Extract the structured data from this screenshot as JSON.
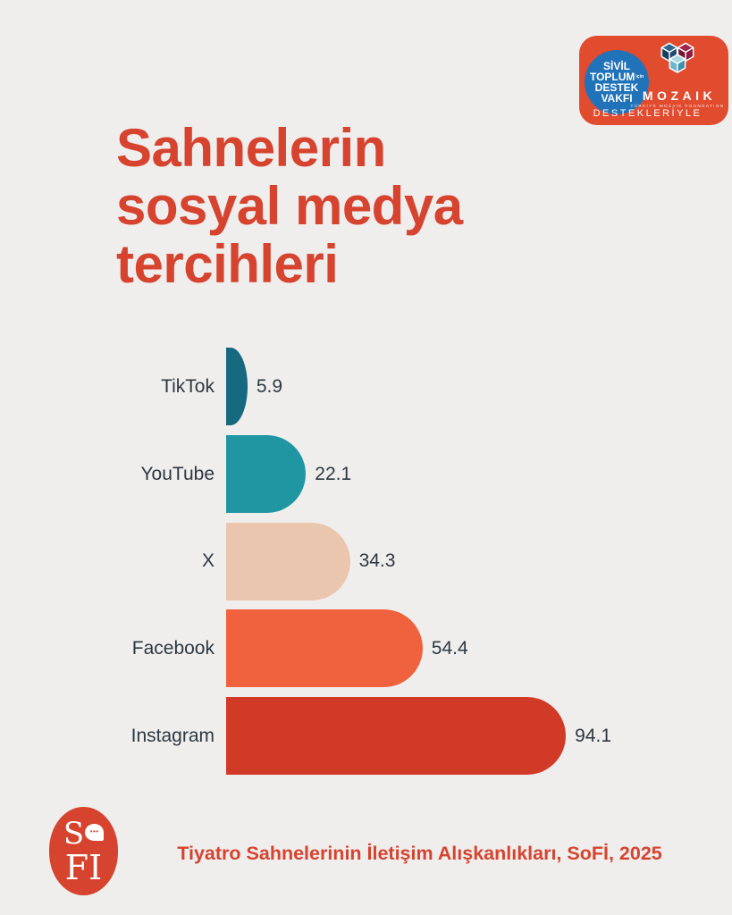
{
  "background_color": "#efeeed",
  "accent_red": "#d6432e",
  "title": {
    "lines": [
      "Sahnelerin",
      "sosyal medya",
      "tercihleri"
    ],
    "color": "#d6432e"
  },
  "badge": {
    "bg_color": "#e14b2e",
    "stdv": {
      "circle_color": "#2173b9",
      "line1": "SİVİL",
      "line2": "TOPLUM",
      "line2b": "için",
      "line3": "DESTEK",
      "line4": "VAKFI"
    },
    "mozaik": {
      "name": "MOZAIK",
      "subtitle": "TÜRKİYE MOZAİK FOUNDATION",
      "cube_icon": "three-cubes-heart-icon"
    },
    "supported_by": "DESTEKLERİYLE"
  },
  "chart_data": {
    "type": "bar",
    "orientation": "horizontal",
    "title": "Sahnelerin sosyal medya tercihleri",
    "categories": [
      "TikTok",
      "YouTube",
      "X",
      "Facebook",
      "Instagram"
    ],
    "values": [
      5.9,
      22.1,
      34.3,
      54.4,
      94.1
    ],
    "bar_colors": [
      "#16697f",
      "#2196a3",
      "#eac6ae",
      "#f0613e",
      "#d23a28"
    ],
    "xlim": [
      0,
      100
    ],
    "grid": false,
    "legend": false,
    "value_labels": true,
    "label_color": "#2e3740",
    "xlabel": "",
    "ylabel": ""
  },
  "footer": {
    "source": "Tiyatro Sahnelerinin İletişim Alışkanlıkları, SoFİ, 2025",
    "source_color": "#d6432e",
    "logo": {
      "bg_color": "#d6432e",
      "top_letter": "S",
      "bubble_icon": "speech-bubble-icon",
      "bubble_dots": "•••",
      "bottom_text": "FI"
    }
  }
}
